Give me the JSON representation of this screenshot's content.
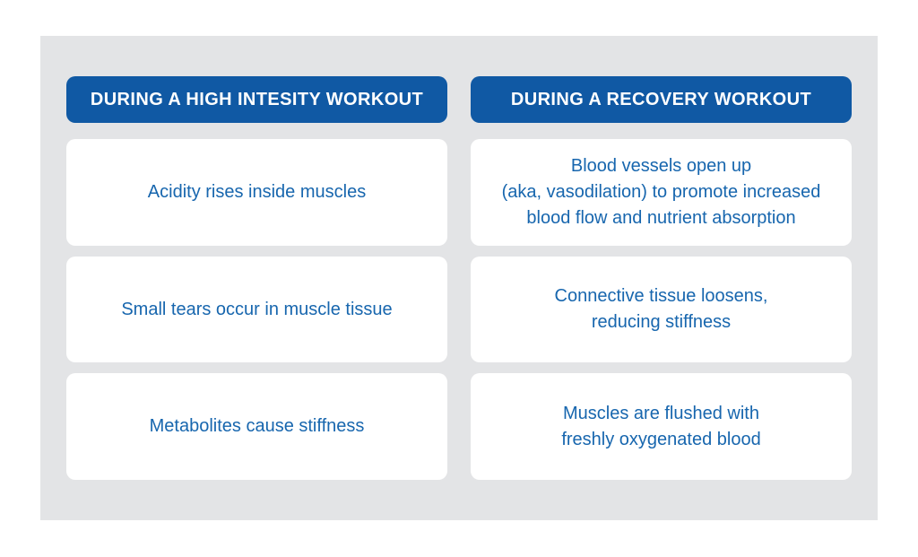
{
  "page": {
    "background_color": "#ffffff",
    "panel_background_color": "#e3e4e6"
  },
  "colors": {
    "header_background": "#1059a4",
    "header_text": "#ffffff",
    "card_background": "#ffffff",
    "card_text": "#1766ae"
  },
  "columns": [
    {
      "header": "DURING A HIGH INTESITY WORKOUT",
      "cards": [
        "Acidity rises inside muscles",
        "Small tears occur in muscle tissue",
        "Metabolites cause stiffness"
      ]
    },
    {
      "header": "DURING A RECOVERY WORKOUT",
      "cards": [
        "Blood vessels open up\n(aka, vasodilation) to promote increased\nblood flow and nutrient absorption",
        "Connective tissue loosens,\nreducing stiffness",
        "Muscles are flushed with\nfreshly oxygenated blood"
      ]
    }
  ]
}
